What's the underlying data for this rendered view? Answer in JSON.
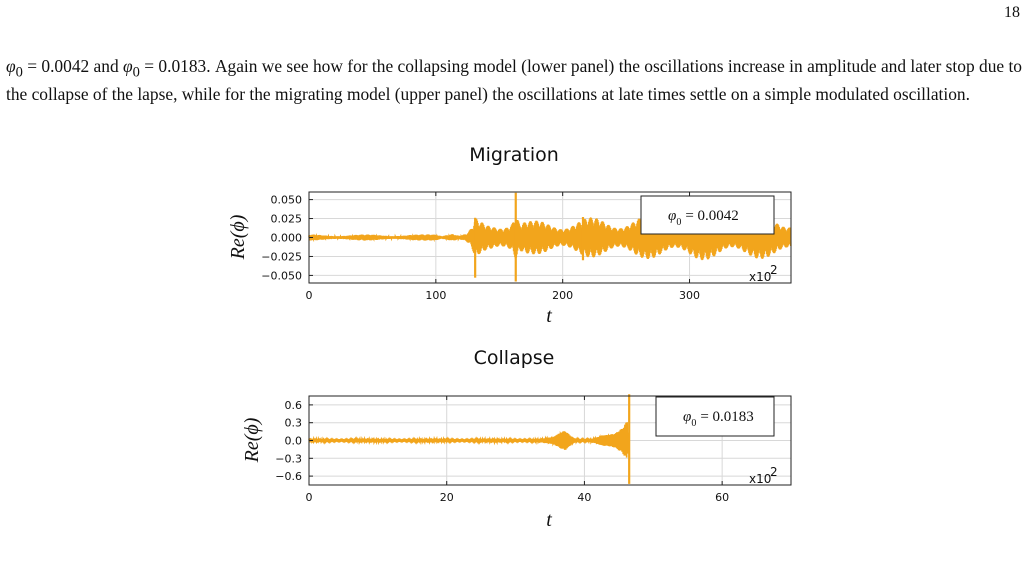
{
  "page": {
    "number": "18",
    "paragraph": {
      "s1": "φ",
      "s1_sub": "0",
      "s2": " = 0.0042 and ",
      "s3": "φ",
      "s3_sub": "0",
      "s4": " = 0.0183. Again we see how for the collapsing model (lower panel) the oscillations increase in amplitude and later stop due to the collapse of the lapse, while for the migrating model (upper panel) the oscillations at late times settle on a simple modulated oscillation."
    }
  },
  "chart_data": [
    {
      "type": "line",
      "title": "Migration",
      "xlabel": "t",
      "ylabel": "Re(ϕ)",
      "xlim": [
        0,
        380
      ],
      "ylim": [
        -0.06,
        0.06
      ],
      "x_ticks": [
        "0",
        "100",
        "200",
        "300"
      ],
      "y_ticks": [
        "0.050",
        "0.025",
        "0.000",
        "−0.025",
        "−0.050"
      ],
      "x_scale_label": "x10",
      "x_scale_exp": "2",
      "legend": {
        "label": "φ",
        "label_sub": "0",
        "value": "= 0.0042",
        "placement": "top-right"
      },
      "grid": true,
      "color": "#f2a51c",
      "series": [
        {
          "envelope": [
            [
              0,
              0.004
            ],
            [
              90,
              0.004
            ],
            [
              100,
              0.005
            ],
            [
              105,
              0.003
            ],
            [
              108,
              0.006
            ],
            [
              113,
              0.01
            ],
            [
              118,
              0.004
            ],
            [
              124,
              0.006
            ],
            [
              128,
              0.013
            ],
            [
              131,
              0.026
            ],
            [
              134,
              0.022
            ],
            [
              140,
              0.018
            ],
            [
              150,
              0.022
            ],
            [
              160,
              0.035
            ],
            [
              163,
              0.05
            ],
            [
              166,
              0.025
            ],
            [
              175,
              0.022
            ],
            [
              200,
              0.025
            ],
            [
              230,
              0.027
            ],
            [
              260,
              0.028
            ],
            [
              290,
              0.03
            ],
            [
              320,
              0.03
            ],
            [
              350,
              0.028
            ],
            [
              380,
              0.03
            ]
          ],
          "spikes": [
            {
              "t": 131,
              "up": 0.026,
              "down": -0.053
            },
            {
              "t": 163,
              "up": 0.059,
              "down": -0.058
            },
            {
              "t": 216,
              "up": 0.027,
              "down": -0.03
            }
          ]
        }
      ]
    },
    {
      "type": "line",
      "title": "Collapse",
      "xlabel": "t",
      "ylabel": "Re(ϕ)",
      "xlim": [
        0,
        70
      ],
      "ylim": [
        -0.75,
        0.75
      ],
      "x_ticks": [
        "0",
        "20",
        "40",
        "60"
      ],
      "y_ticks": [
        "0.6",
        "0.3",
        "0.0",
        "−0.3",
        "−0.6"
      ],
      "x_scale_label": "x10",
      "x_scale_exp": "2",
      "legend": {
        "label": "φ",
        "label_sub": "0",
        "value": "= 0.0183",
        "placement": "top-right"
      },
      "grid": true,
      "color": "#f2a51c",
      "series": [
        {
          "envelope": [
            [
              0,
              0.03
            ],
            [
              30,
              0.03
            ],
            [
              34,
              0.04
            ],
            [
              35.5,
              0.06
            ],
            [
              36.3,
              0.12
            ],
            [
              37.2,
              0.2
            ],
            [
              38,
              0.12
            ],
            [
              38.8,
              0.04
            ],
            [
              40.5,
              0.04
            ],
            [
              41.5,
              0.07
            ],
            [
              42.5,
              0.11
            ],
            [
              43.5,
              0.1
            ],
            [
              44.5,
              0.12
            ],
            [
              45.5,
              0.22
            ],
            [
              46.2,
              0.4
            ],
            [
              46.5,
              0.03
            ]
          ],
          "spikes": [
            {
              "t": 46.5,
              "up": 0.78,
              "down": -0.73
            }
          ],
          "end_t": 46.5
        }
      ]
    }
  ]
}
